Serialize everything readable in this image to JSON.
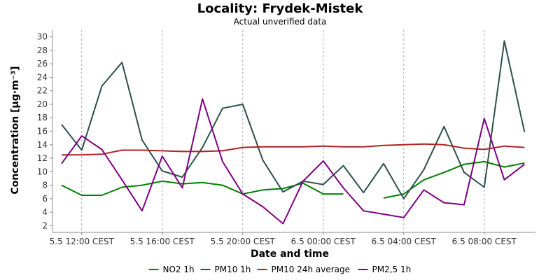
{
  "chart_data": {
    "type": "line",
    "title": "Locality: Frydek-Mistek",
    "subtitle": "Actual unverified data",
    "xlabel": "Date and time",
    "ylabel": "Concentration [µg·m⁻³]",
    "ylim": [
      1,
      31
    ],
    "yticks": [
      2,
      4,
      6,
      8,
      10,
      12,
      14,
      16,
      18,
      20,
      22,
      24,
      26,
      28,
      30
    ],
    "x": [
      "2023-05-05 11:00",
      "2023-05-05 12:00",
      "2023-05-05 13:00",
      "2023-05-05 14:00",
      "2023-05-05 15:00",
      "2023-05-05 16:00",
      "2023-05-05 17:00",
      "2023-05-05 18:00",
      "2023-05-05 19:00",
      "2023-05-05 20:00",
      "2023-05-05 21:00",
      "2023-05-05 22:00",
      "2023-05-05 23:00",
      "2023-05-06 00:00",
      "2023-05-06 01:00",
      "2023-05-06 02:00",
      "2023-05-06 03:00",
      "2023-05-06 04:00",
      "2023-05-06 05:00",
      "2023-05-06 06:00",
      "2023-05-06 07:00",
      "2023-05-06 08:00",
      "2023-05-06 09:00",
      "2023-05-06 10:00"
    ],
    "xticks": [
      {
        "x": "2023-05-05 12:00",
        "label": "5.5 12:00 CEST"
      },
      {
        "x": "2023-05-05 16:00",
        "label": "5.5 16:00 CEST"
      },
      {
        "x": "2023-05-05 20:00",
        "label": "5.5 20:00 CEST"
      },
      {
        "x": "2023-05-06 00:00",
        "label": "6.5 00:00 CEST"
      },
      {
        "x": "2023-05-06 04:00",
        "label": "6.5 04:00 CEST"
      },
      {
        "x": "2023-05-06 08:00",
        "label": "6.5 08:00 CEST"
      }
    ],
    "grid": true,
    "legend_position": "bottom",
    "series": [
      {
        "name": "NO2 1h",
        "color": "#008000",
        "values": [
          8.0,
          6.5,
          6.5,
          7.7,
          8.0,
          8.6,
          8.2,
          8.4,
          8.0,
          6.7,
          7.3,
          7.5,
          8.3,
          6.7,
          6.7,
          null,
          6.1,
          6.7,
          8.8,
          9.9,
          11.1,
          11.5,
          10.7,
          11.3
        ]
      },
      {
        "name": "PM10 1h",
        "color": "#2F4F4F",
        "values": [
          17.0,
          13.2,
          22.7,
          26.2,
          14.7,
          10.1,
          9.2,
          13.6,
          19.4,
          20.0,
          11.7,
          7.0,
          8.6,
          8.1,
          10.9,
          6.9,
          11.2,
          6.0,
          10.3,
          16.7,
          9.9,
          7.7,
          29.4,
          15.9
        ]
      },
      {
        "name": "PM10 24h average",
        "color": "#B22222",
        "values": [
          12.5,
          12.5,
          12.6,
          13.2,
          13.2,
          13.1,
          13.0,
          13.0,
          13.1,
          13.6,
          13.7,
          13.7,
          13.7,
          13.8,
          13.7,
          13.7,
          13.9,
          14.0,
          14.1,
          14.0,
          13.5,
          13.3,
          13.8,
          13.6
        ]
      },
      {
        "name": "PM2,5 1h",
        "color": "#800080",
        "values": [
          11.2,
          15.3,
          13.3,
          8.8,
          4.2,
          12.3,
          7.6,
          20.8,
          11.5,
          6.7,
          4.8,
          2.3,
          8.6,
          11.6,
          7.6,
          4.2,
          3.7,
          3.2,
          7.3,
          5.4,
          5.1,
          17.9,
          8.8,
          11.1
        ]
      }
    ]
  }
}
